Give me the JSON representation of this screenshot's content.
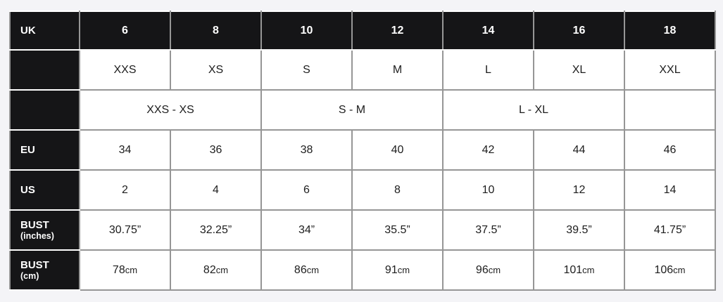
{
  "page": {
    "background_color": "#f4f4f7",
    "colors": {
      "header_cell_bg": "#151517",
      "header_cell_text": "#ffffff",
      "grid_line": "#969696",
      "header_divider": "#ffffff",
      "data_cell_bg": "#ffffff",
      "data_cell_text": "#1d1d1d"
    }
  },
  "size_chart": {
    "uk": {
      "label": "UK",
      "sizes": [
        "6",
        "8",
        "10",
        "12",
        "14",
        "16",
        "18"
      ]
    },
    "alpha": {
      "label": "",
      "sizes": [
        "XXS",
        "XS",
        "S",
        "M",
        "L",
        "XL",
        "XXL"
      ]
    },
    "alpha_ranges": {
      "label": "",
      "ranges": [
        "XXS - XS",
        "S - M",
        "L - XL",
        ""
      ]
    },
    "eu": {
      "label": "EU",
      "sizes": [
        "34",
        "36",
        "38",
        "40",
        "42",
        "44",
        "46"
      ]
    },
    "us": {
      "label": "US",
      "sizes": [
        "2",
        "4",
        "6",
        "8",
        "10",
        "12",
        "14"
      ]
    },
    "bust_inches": {
      "label": "BUST",
      "sublabel": "(inches)",
      "values": [
        "30.75”",
        "32.25”",
        "34”",
        "35.5”",
        "37.5”",
        "39.5”",
        "41.75”"
      ]
    },
    "bust_cm": {
      "label": "BUST",
      "sublabel": "(cm)",
      "numbers": [
        "78",
        "82",
        "86",
        "91",
        "96",
        "101",
        "106"
      ],
      "unit": "cm"
    }
  },
  "chart_data": {
    "type": "table",
    "grid": "on",
    "rows": [
      {
        "label": "UK",
        "cells": [
          {
            "text": "6",
            "span": 1
          },
          {
            "text": "8",
            "span": 1
          },
          {
            "text": "10",
            "span": 1
          },
          {
            "text": "12",
            "span": 1
          },
          {
            "text": "14",
            "span": 1
          },
          {
            "text": "16",
            "span": 1
          },
          {
            "text": "18",
            "span": 1
          }
        ]
      },
      {
        "label": "",
        "cells": [
          {
            "text": "XXS",
            "span": 1
          },
          {
            "text": "XS",
            "span": 1
          },
          {
            "text": "S",
            "span": 1
          },
          {
            "text": "M",
            "span": 1
          },
          {
            "text": "L",
            "span": 1
          },
          {
            "text": "XL",
            "span": 1
          },
          {
            "text": "XXL",
            "span": 1
          }
        ]
      },
      {
        "label": "",
        "cells": [
          {
            "text": "XXS - XS",
            "span": 2
          },
          {
            "text": "S - M",
            "span": 2
          },
          {
            "text": "L - XL",
            "span": 2
          },
          {
            "text": "",
            "span": 1
          }
        ]
      },
      {
        "label": "EU",
        "cells": [
          {
            "text": "34",
            "span": 1
          },
          {
            "text": "36",
            "span": 1
          },
          {
            "text": "38",
            "span": 1
          },
          {
            "text": "40",
            "span": 1
          },
          {
            "text": "42",
            "span": 1
          },
          {
            "text": "44",
            "span": 1
          },
          {
            "text": "46",
            "span": 1
          }
        ]
      },
      {
        "label": "US",
        "cells": [
          {
            "text": "2",
            "span": 1
          },
          {
            "text": "4",
            "span": 1
          },
          {
            "text": "6",
            "span": 1
          },
          {
            "text": "8",
            "span": 1
          },
          {
            "text": "10",
            "span": 1
          },
          {
            "text": "12",
            "span": 1
          },
          {
            "text": "14",
            "span": 1
          }
        ]
      },
      {
        "label": "BUST (inches)",
        "cells": [
          {
            "text": "30.75”",
            "span": 1
          },
          {
            "text": "32.25”",
            "span": 1
          },
          {
            "text": "34”",
            "span": 1
          },
          {
            "text": "35.5”",
            "span": 1
          },
          {
            "text": "37.5”",
            "span": 1
          },
          {
            "text": "39.5”",
            "span": 1
          },
          {
            "text": "41.75”",
            "span": 1
          }
        ]
      },
      {
        "label": "BUST (cm)",
        "cells": [
          {
            "text": "78cm",
            "span": 1
          },
          {
            "text": "82cm",
            "span": 1
          },
          {
            "text": "86cm",
            "span": 1
          },
          {
            "text": "91cm",
            "span": 1
          },
          {
            "text": "96cm",
            "span": 1
          },
          {
            "text": "101cm",
            "span": 1
          },
          {
            "text": "106cm",
            "span": 1
          }
        ]
      }
    ]
  }
}
